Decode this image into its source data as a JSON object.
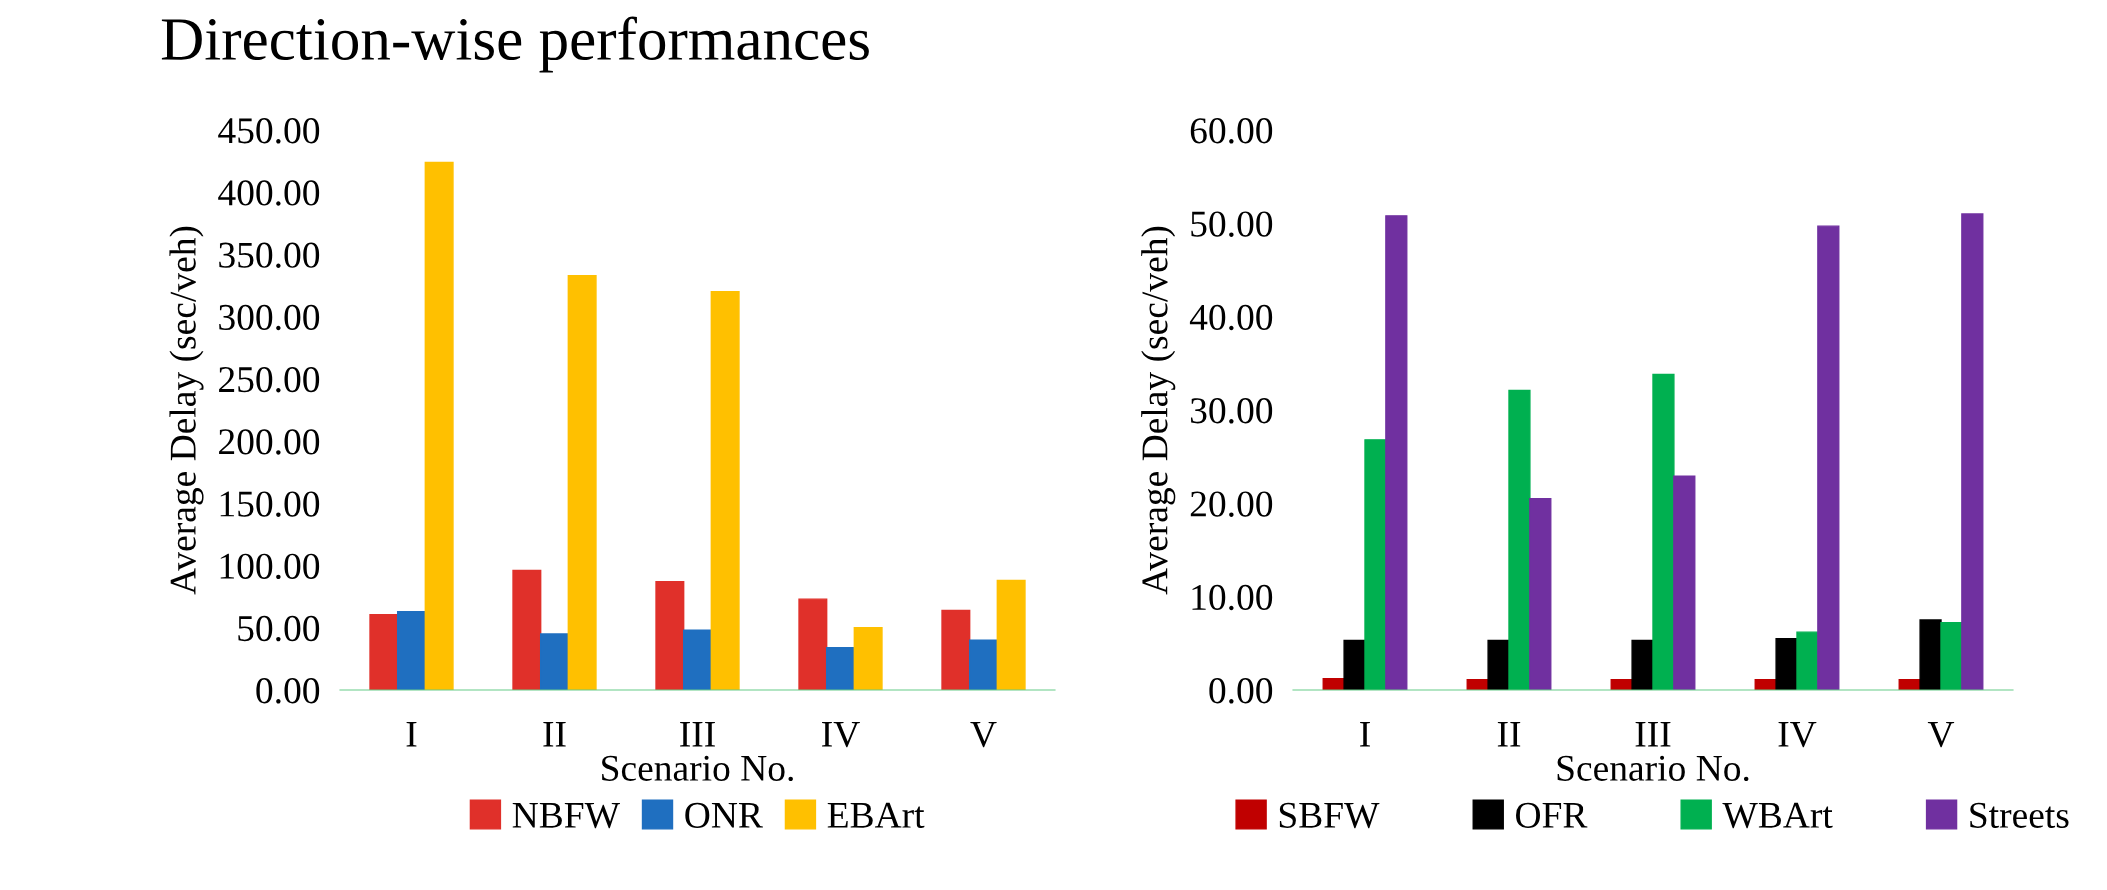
{
  "chart_data": [
    {
      "type": "bar",
      "title": "Direction-wise performances",
      "xlabel": "Scenario No.",
      "ylabel": "Average Delay (sec/veh)",
      "categories": [
        "I",
        "II",
        "III",
        "IV",
        "V"
      ],
      "series": [
        {
          "name": "NBFW",
          "color": "#e0302a",
          "values": [
            60.5,
            96,
            87,
            73,
            64
          ]
        },
        {
          "name": "ONR",
          "color": "#1f6fc0",
          "values": [
            63,
            45,
            48,
            34,
            40
          ]
        },
        {
          "name": "EBArt",
          "color": "#ffc000",
          "values": [
            424,
            333,
            320,
            50,
            88
          ]
        }
      ],
      "ylim": [
        0,
        450
      ],
      "yticks": [
        {
          "value": 0,
          "label": "0.00"
        },
        {
          "value": 50,
          "label": "50.00"
        },
        {
          "value": 100,
          "label": "100.00"
        },
        {
          "value": 150,
          "label": "150.00"
        },
        {
          "value": 200,
          "label": "200.00"
        },
        {
          "value": 250,
          "label": "250.00"
        },
        {
          "value": 300,
          "label": "300.00"
        },
        {
          "value": 350,
          "label": "350.00"
        },
        {
          "value": 400,
          "label": "400.00"
        },
        {
          "value": 450,
          "label": "450.00"
        }
      ],
      "grid": false,
      "legend": "bottom"
    },
    {
      "type": "bar",
      "xlabel": "Scenario No.",
      "ylabel": "Average Delay (sec/veh)",
      "categories": [
        "I",
        "II",
        "III",
        "IV",
        "V"
      ],
      "series": [
        {
          "name": "SBFW",
          "color": "#c00000",
          "values": [
            1.2,
            1.1,
            1.1,
            1.1,
            1.1
          ]
        },
        {
          "name": "OFR",
          "color": "#000000",
          "values": [
            5.3,
            5.3,
            5.3,
            5.5,
            7.5
          ]
        },
        {
          "name": "WBArt",
          "color": "#00b050",
          "values": [
            26.8,
            32.1,
            33.8,
            6.2,
            7.2
          ]
        },
        {
          "name": "Streets",
          "color": "#7030a0",
          "values": [
            50.8,
            20.5,
            22.9,
            49.7,
            51.0
          ]
        }
      ],
      "ylim": [
        0,
        60
      ],
      "yticks": [
        {
          "value": 0,
          "label": "0.00"
        },
        {
          "value": 10,
          "label": "10.00"
        },
        {
          "value": 20,
          "label": "20.00"
        },
        {
          "value": 30,
          "label": "30.00"
        },
        {
          "value": 40,
          "label": "40.00"
        },
        {
          "value": 50,
          "label": "50.00"
        },
        {
          "value": 60,
          "label": "60.00"
        }
      ],
      "grid": false,
      "legend": "bottom"
    }
  ]
}
